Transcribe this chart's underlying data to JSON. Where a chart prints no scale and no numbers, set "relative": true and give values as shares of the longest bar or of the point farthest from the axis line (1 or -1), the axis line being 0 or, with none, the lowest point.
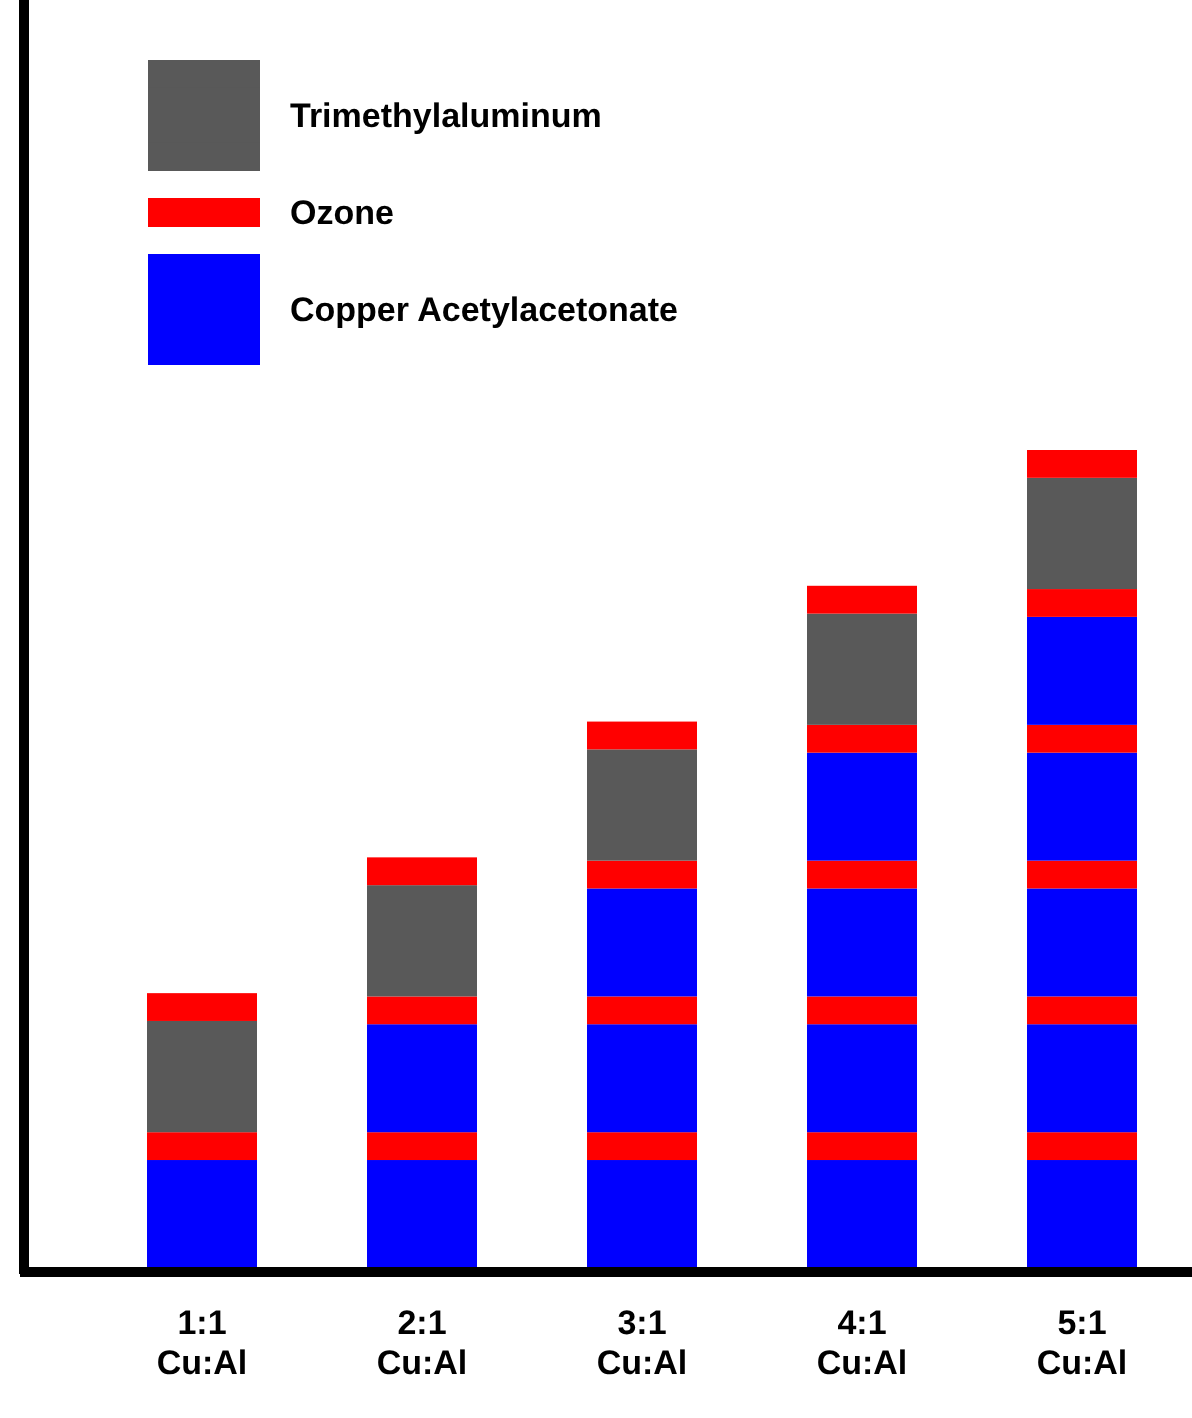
{
  "chart_data": {
    "type": "bar",
    "stacked": true,
    "relative": true,
    "legend": "top left",
    "categories": [
      "1:1 Cu:Al",
      "2:1 Cu:Al",
      "3:1 Cu:Al",
      "4:1 Cu:Al",
      "5:1 Cu:Al"
    ],
    "series": [
      {
        "name": "Copper Acetylacetonate",
        "color": "#0000ff",
        "values": [
          0.132,
          0.132,
          0.132,
          0.132,
          0.132
        ]
      },
      {
        "name": "Ozone",
        "color": "#ff0000",
        "values": [
          0.034,
          0.034,
          0.034,
          0.034,
          0.034
        ]
      },
      {
        "color": "#0000ff",
        "values": [
          null,
          0.132,
          0.132,
          0.132,
          0.132
        ]
      },
      {
        "color": "#ff0000",
        "values": [
          null,
          0.034,
          0.034,
          0.034,
          0.034
        ]
      },
      {
        "color": "#0000ff",
        "values": [
          null,
          null,
          0.132,
          0.132,
          0.132
        ]
      },
      {
        "color": "#ff0000",
        "values": [
          null,
          null,
          0.034,
          0.034,
          0.034
        ]
      },
      {
        "color": "#0000ff",
        "values": [
          null,
          null,
          null,
          0.132,
          0.132
        ]
      },
      {
        "color": "#ff0000",
        "values": [
          null,
          null,
          null,
          0.034,
          0.034
        ]
      },
      {
        "color": "#0000ff",
        "values": [
          null,
          null,
          null,
          null,
          0.132
        ]
      },
      {
        "color": "#ff0000",
        "values": [
          null,
          null,
          null,
          null,
          0.034
        ]
      },
      {
        "name": "Trimethylaluminum",
        "color": "#595959",
        "values": [
          0.136,
          0.136,
          0.136,
          0.136,
          0.136
        ]
      },
      {
        "color": "#ff0000",
        "values": [
          0.034,
          0.034,
          0.034,
          0.034,
          0.034
        ]
      }
    ]
  }
}
